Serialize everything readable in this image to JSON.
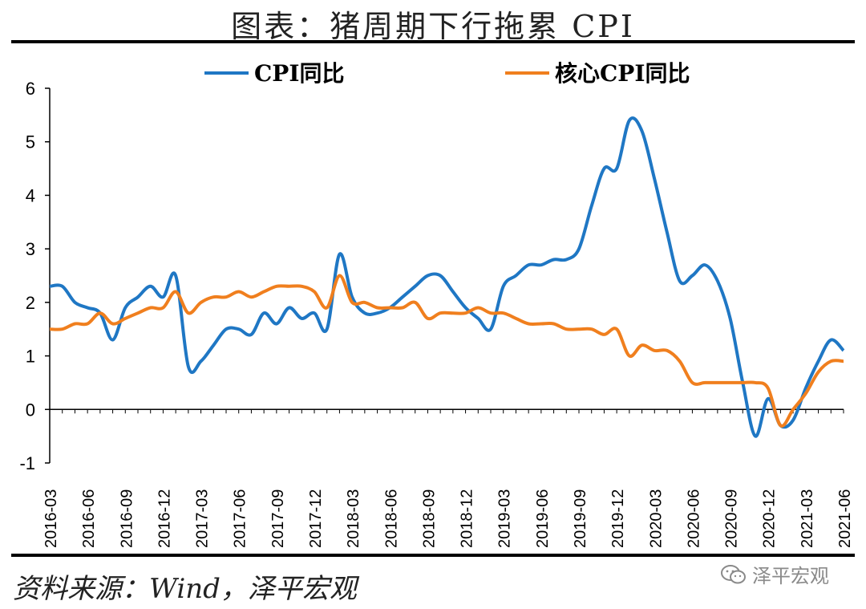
{
  "title": "图表：猪周期下行拖累 CPI",
  "source": "资料来源：Wind，泽平宏观",
  "watermark": "泽平宏观",
  "chart_data": {
    "type": "line",
    "ylim": [
      -1,
      6
    ],
    "yticks": [
      "6",
      "5",
      "4",
      "3",
      "2",
      "1",
      "0",
      "-1"
    ],
    "ytick_values": [
      6,
      5,
      4,
      3,
      2,
      1,
      0,
      -1
    ],
    "xtick_labels": [
      "2016-03",
      "2016-06",
      "2016-09",
      "2016-12",
      "2017-03",
      "2017-06",
      "2017-09",
      "2017-12",
      "2018-03",
      "2018-06",
      "2018-09",
      "2018-12",
      "2019-03",
      "2019-06",
      "2019-09",
      "2019-12",
      "2020-03",
      "2020-06",
      "2020-09",
      "2020-12",
      "2021-03",
      "2021-06"
    ],
    "x": [
      "2016-03",
      "2016-04",
      "2016-05",
      "2016-06",
      "2016-07",
      "2016-08",
      "2016-09",
      "2016-10",
      "2016-11",
      "2016-12",
      "2017-01",
      "2017-02",
      "2017-03",
      "2017-04",
      "2017-05",
      "2017-06",
      "2017-07",
      "2017-08",
      "2017-09",
      "2017-10",
      "2017-11",
      "2017-12",
      "2018-01",
      "2018-02",
      "2018-03",
      "2018-04",
      "2018-05",
      "2018-06",
      "2018-07",
      "2018-08",
      "2018-09",
      "2018-10",
      "2018-11",
      "2018-12",
      "2019-01",
      "2019-02",
      "2019-03",
      "2019-04",
      "2019-05",
      "2019-06",
      "2019-07",
      "2019-08",
      "2019-09",
      "2019-10",
      "2019-11",
      "2019-12",
      "2020-01",
      "2020-02",
      "2020-03",
      "2020-04",
      "2020-05",
      "2020-06",
      "2020-07",
      "2020-08",
      "2020-09",
      "2020-10",
      "2020-11",
      "2020-12",
      "2021-01",
      "2021-02",
      "2021-03",
      "2021-04",
      "2021-05",
      "2021-06"
    ],
    "series": [
      {
        "name": "CPI同比",
        "color": "#1f77c4",
        "values": [
          2.3,
          2.3,
          2.0,
          1.9,
          1.8,
          1.3,
          1.9,
          2.1,
          2.3,
          2.1,
          2.5,
          0.8,
          0.9,
          1.2,
          1.5,
          1.5,
          1.4,
          1.8,
          1.6,
          1.9,
          1.7,
          1.8,
          1.5,
          2.9,
          2.1,
          1.8,
          1.8,
          1.9,
          2.1,
          2.3,
          2.5,
          2.5,
          2.2,
          1.9,
          1.7,
          1.5,
          2.3,
          2.5,
          2.7,
          2.7,
          2.8,
          2.8,
          3.0,
          3.8,
          4.5,
          4.5,
          5.4,
          5.2,
          4.3,
          3.3,
          2.4,
          2.5,
          2.7,
          2.4,
          1.7,
          0.5,
          -0.5,
          0.2,
          -0.3,
          -0.2,
          0.4,
          0.9,
          1.3,
          1.1
        ]
      },
      {
        "name": "核心CPI同比",
        "color": "#f07f1e",
        "values": [
          1.5,
          1.5,
          1.6,
          1.6,
          1.8,
          1.6,
          1.7,
          1.8,
          1.9,
          1.9,
          2.2,
          1.8,
          2.0,
          2.1,
          2.1,
          2.2,
          2.1,
          2.2,
          2.3,
          2.3,
          2.3,
          2.2,
          1.9,
          2.5,
          2.0,
          2.0,
          1.9,
          1.9,
          1.9,
          2.0,
          1.7,
          1.8,
          1.8,
          1.8,
          1.9,
          1.8,
          1.8,
          1.7,
          1.6,
          1.6,
          1.6,
          1.5,
          1.5,
          1.5,
          1.4,
          1.5,
          1.0,
          1.2,
          1.1,
          1.1,
          0.9,
          0.5,
          0.5,
          0.5,
          0.5,
          0.5,
          0.5,
          0.4,
          -0.3,
          0.0,
          0.3,
          0.7,
          0.9,
          0.9
        ]
      }
    ],
    "legend_position": "top"
  }
}
